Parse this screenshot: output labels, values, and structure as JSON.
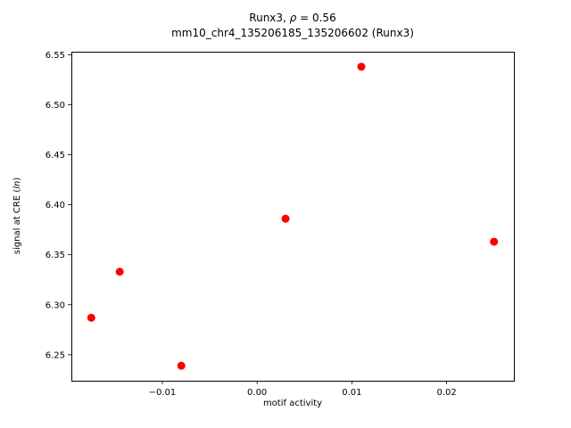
{
  "chart_data": {
    "type": "scatter",
    "title": {
      "prefix": "Runx3, ",
      "rho": "ρ",
      "suffix": " = 0.56"
    },
    "subtitle": "mm10_chr4_135206185_135206602 (Runx3)",
    "xlabel": "motif activity",
    "ylabel": {
      "prefix": "signal at CRE (",
      "italic": "ln",
      "suffix": ")"
    },
    "marker_color": "#ff0000",
    "marker_size_px": 4.5,
    "grid": false,
    "legend": "none",
    "xlim": [
      -0.0196,
      0.0271
    ],
    "ylim": [
      6.224,
      6.553
    ],
    "xticks": [
      {
        "value": -0.01,
        "label": "−0.01"
      },
      {
        "value": 0.0,
        "label": "0.00"
      },
      {
        "value": 0.01,
        "label": "0.01"
      },
      {
        "value": 0.02,
        "label": "0.02"
      }
    ],
    "yticks": [
      {
        "value": 6.25,
        "label": "6.25"
      },
      {
        "value": 6.3,
        "label": "6.30"
      },
      {
        "value": 6.35,
        "label": "6.35"
      },
      {
        "value": 6.4,
        "label": "6.40"
      },
      {
        "value": 6.45,
        "label": "6.45"
      },
      {
        "value": 6.5,
        "label": "6.50"
      },
      {
        "value": 6.55,
        "label": "6.55"
      }
    ],
    "points": [
      {
        "x": -0.0175,
        "y": 6.287
      },
      {
        "x": -0.0145,
        "y": 6.333
      },
      {
        "x": -0.008,
        "y": 6.239
      },
      {
        "x": 0.003,
        "y": 6.386
      },
      {
        "x": 0.011,
        "y": 6.538
      },
      {
        "x": 0.025,
        "y": 6.363
      }
    ]
  }
}
